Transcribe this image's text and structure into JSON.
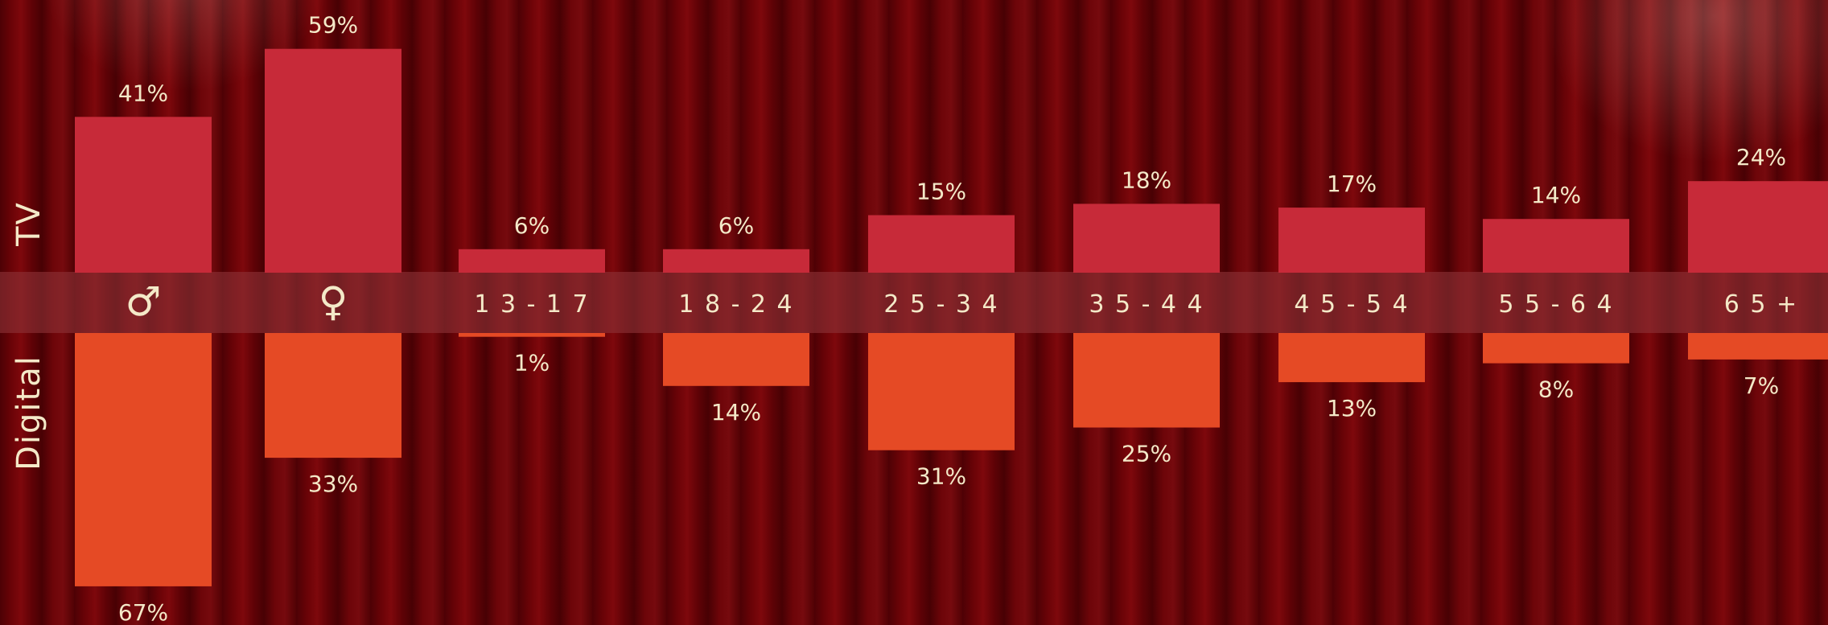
{
  "chart_data": {
    "type": "bar",
    "categories": [
      "♂",
      "♀",
      "1 3 - 1 7",
      "1 8 - 2 4",
      "2 5 - 3 4",
      "3 5 - 4 4",
      "4 5 - 5 4",
      "5 5 - 6 4",
      "6 5 +"
    ],
    "series": [
      {
        "name": "TV",
        "values": [
          41,
          59,
          6,
          6,
          15,
          18,
          17,
          14,
          24
        ],
        "direction": "up"
      },
      {
        "name": "Digital",
        "values": [
          67,
          33,
          1,
          14,
          31,
          25,
          13,
          8,
          7
        ],
        "direction": "down"
      }
    ],
    "value_suffix": "%",
    "value_labels": {
      "TV": [
        "41%",
        "59%",
        "6%",
        "6%",
        "15%",
        "18%",
        "17%",
        "14%",
        "24%"
      ],
      "Digital": [
        "67%",
        "33%",
        "1%",
        "14%",
        "31%",
        "25%",
        "13%",
        "8%",
        "7%"
      ]
    },
    "row_labels": [
      "TV",
      "Digital"
    ],
    "title": "",
    "xlabel": "",
    "ylabel": "",
    "grid": false,
    "legend": "none"
  },
  "colors": {
    "tv_bar": "#c72a39",
    "digital_bar": "#e54a25",
    "label_text": "#f4e9c8",
    "band": "rgba(140,50,55,0.62)",
    "background": "#5a0206"
  }
}
